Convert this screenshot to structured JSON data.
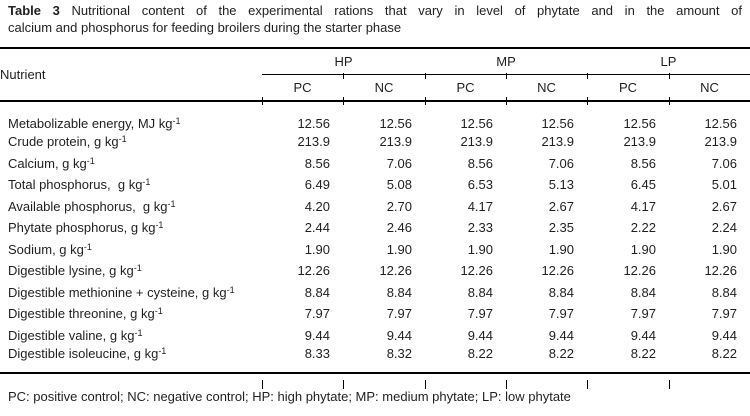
{
  "caption": {
    "label": "Table 3",
    "line1": "Nutritional content of the experimental rations that vary in level of phytate and in the amount of",
    "line2": "calcium and phosphorus for feeding broilers during the starter phase"
  },
  "table": {
    "stub_header": "Nutrient",
    "group_headers": [
      "HP",
      "MP",
      "LP"
    ],
    "sub_headers": [
      "PC",
      "NC",
      "PC",
      "NC",
      "PC",
      "NC"
    ],
    "rows": [
      {
        "label": "Metabolizable energy, MJ kg",
        "sup": "-1",
        "values": [
          "12.56",
          "12.56",
          "12.56",
          "12.56",
          "12.56",
          "12.56"
        ]
      },
      {
        "label": "Crude protein, g kg",
        "sup": "-1",
        "values": [
          "213.9",
          "213.9",
          "213.9",
          "213.9",
          "213.9",
          "213.9"
        ]
      },
      {
        "label": "Calcium, g kg",
        "sup": "-1",
        "values": [
          "8.56",
          "7.06",
          "8.56",
          "7.06",
          "8.56",
          "7.06"
        ]
      },
      {
        "label": "Total phosphorus,  g kg",
        "sup": "-1",
        "values": [
          "6.49",
          "5.08",
          "6.53",
          "5.13",
          "6.45",
          "5.01"
        ]
      },
      {
        "label": "Available phosphorus,  g kg",
        "sup": "-1",
        "values": [
          "4.20",
          "2.70",
          "4.17",
          "2.67",
          "4.17",
          "2.67"
        ]
      },
      {
        "label": "Phytate phosphorus, g kg",
        "sup": "-1",
        "values": [
          "2.44",
          "2.46",
          "2.33",
          "2.35",
          "2.22",
          "2.24"
        ]
      },
      {
        "label": "Sodium, g kg",
        "sup": "-1",
        "values": [
          "1.90",
          "1.90",
          "1.90",
          "1.90",
          "1.90",
          "1.90"
        ]
      },
      {
        "label": "Digestible lysine, g kg",
        "sup": "-1",
        "values": [
          "12.26",
          "12.26",
          "12.26",
          "12.26",
          "12.26",
          "12.26"
        ]
      },
      {
        "label": "Digestible methionine + cysteine, g kg",
        "sup": "-1",
        "values": [
          "8.84",
          "8.84",
          "8.84",
          "8.84",
          "8.84",
          "8.84"
        ]
      },
      {
        "label": "Digestible threonine, g kg",
        "sup": "-1",
        "values": [
          "7.97",
          "7.97",
          "7.97",
          "7.97",
          "7.97",
          "7.97"
        ]
      },
      {
        "label": "Digestible valine, g kg",
        "sup": "-1",
        "values": [
          "9.44",
          "9.44",
          "9.44",
          "9.44",
          "9.44",
          "9.44"
        ]
      },
      {
        "label": "Digestible isoleucine, g kg",
        "sup": "-1",
        "values": [
          "8.33",
          "8.32",
          "8.22",
          "8.22",
          "8.22",
          "8.22"
        ]
      }
    ]
  },
  "footnote": "PC: positive control; NC: negative control; HP: high phytate; MP: medium phytate; LP: low phytate",
  "colors": {
    "text": "#1f1f1f",
    "rule": "#000000",
    "background": "#ffffff"
  }
}
